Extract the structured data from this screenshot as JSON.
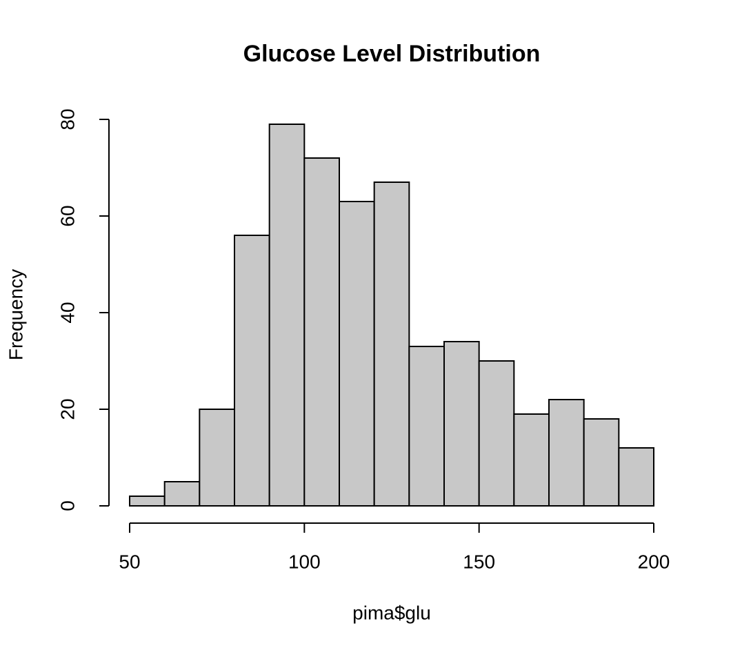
{
  "chart_data": {
    "type": "histogram",
    "title": "Glucose Level Distribution",
    "x_label": "pima$glu",
    "y_label": "Frequency",
    "bins": [
      50,
      60,
      70,
      80,
      90,
      100,
      110,
      120,
      130,
      140,
      150,
      160,
      170,
      180,
      190,
      200
    ],
    "values": [
      2,
      5,
      20,
      56,
      79,
      72,
      63,
      67,
      33,
      34,
      30,
      19,
      22,
      18,
      12
    ],
    "color": "#c8c8c8",
    "xlim": [
      50,
      200
    ],
    "xticks": [
      50,
      100,
      150,
      200
    ],
    "ylim": [
      0,
      80
    ],
    "yticks": [
      0,
      20,
      40,
      60,
      80
    ]
  }
}
